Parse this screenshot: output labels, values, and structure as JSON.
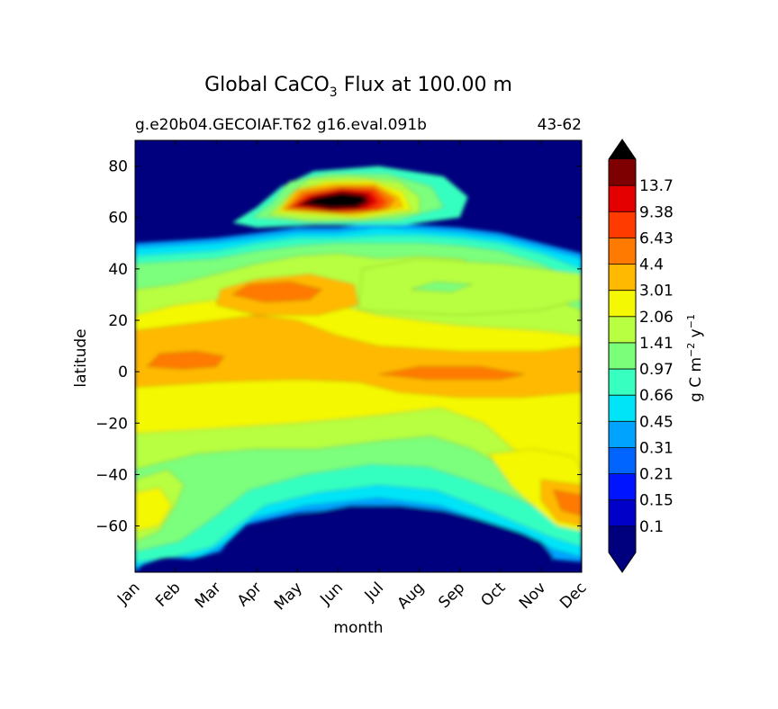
{
  "chart_data": {
    "type": "heatmap",
    "title_main": "Global CaCO",
    "title_sub": "3",
    "title_rest": " Flux at 100.00 m",
    "subtitle_left": "g.e20b04.GECOIAF.T62 g16.eval.091b",
    "subtitle_right": "43-62",
    "xlabel": "month",
    "ylabel": "latitude",
    "x_ticks": [
      "Jan",
      "Feb",
      "Mar",
      "Apr",
      "May",
      "Jun",
      "Jul",
      "Aug",
      "Sep",
      "Oct",
      "Nov",
      "Dec"
    ],
    "y_ticks": [
      80,
      60,
      40,
      20,
      0,
      -20,
      -40,
      -60
    ],
    "y_range": [
      -78,
      90
    ],
    "x_range": [
      0,
      11
    ],
    "colorbar": {
      "label": "g C m",
      "label_exp1": "−2",
      "label_mid": " y",
      "label_exp2": "−1",
      "levels": [
        "0.1",
        "0.15",
        "0.21",
        "0.31",
        "0.45",
        "0.66",
        "0.97",
        "1.41",
        "2.06",
        "3.01",
        "4.4",
        "6.43",
        "9.38",
        "13.7"
      ],
      "colors": [
        "#00007f",
        "#0000c8",
        "#0014ff",
        "#0064ff",
        "#00a4ff",
        "#00e4f8",
        "#36ffc0",
        "#7bff7b",
        "#b7ff40",
        "#f4f802",
        "#ffb900",
        "#ff7a00",
        "#ff3b00",
        "#e40000",
        "#7f0000"
      ],
      "under_color": "#00007f",
      "over_color": "#000000"
    },
    "features": [
      {
        "name": "arctic-bloom",
        "lat": 66,
        "month_start": 4,
        "month_end": 6.2,
        "peak_value": "over 13.7"
      },
      {
        "name": "antarctic-winter-minimum",
        "lat_range": [
          -78,
          -52
        ],
        "month_range": [
          2.5,
          10
        ],
        "value": "below 0.1"
      },
      {
        "name": "subtropical-north-maximum",
        "lat": 30,
        "month_start": 2.3,
        "month_end": 5.5,
        "value": "4.4-6.43"
      },
      {
        "name": "equatorial-maximum",
        "lat": 0,
        "month_start": 6,
        "month_end": 10,
        "value": "3.01-4.4"
      },
      {
        "name": "southern-ocean-summer-maximum",
        "lat": -52,
        "month_start": 9.5,
        "month_end": 11,
        "value": "3.01-4.4"
      }
    ]
  }
}
